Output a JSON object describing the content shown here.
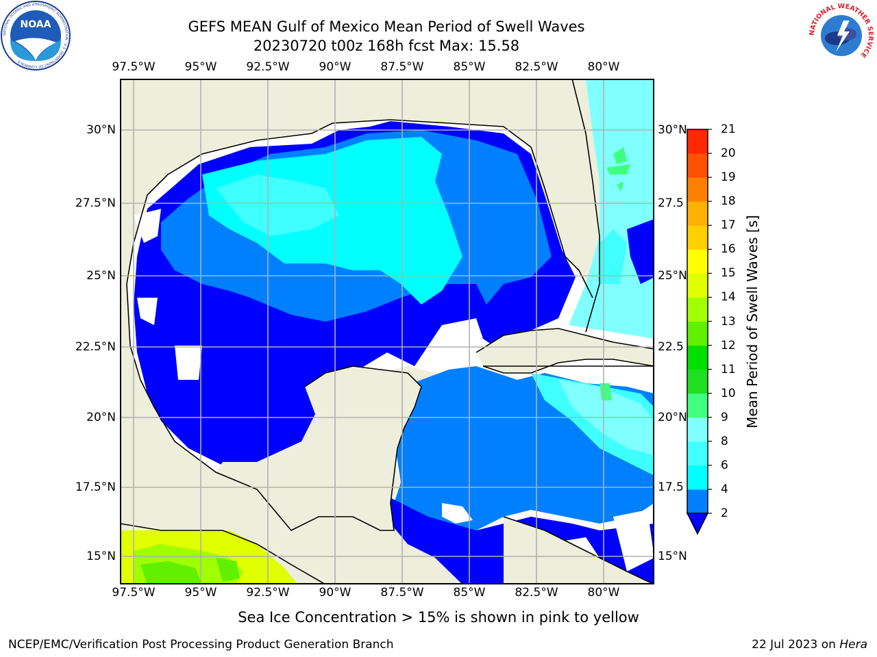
{
  "header": {
    "title": "GEFS MEAN Gulf of Mexico Mean Period of Swell Waves",
    "subtitle": "20230720 t00z 168h fcst   Max: 15.58"
  },
  "logos": {
    "noaa": {
      "text": "NOAA",
      "ring_text": "NATIONAL OCEANIC AND ATMOSPHERIC ADMINISTRATION · U.S. DEPARTMENT OF COMMERCE"
    },
    "nws": {
      "ring_text": "NATIONAL WEATHER SERVICE"
    }
  },
  "map": {
    "lon_labels": [
      "97.5°W",
      "95°W",
      "92.5°W",
      "90°W",
      "87.5°W",
      "85°W",
      "82.5°W",
      "80°W"
    ],
    "lat_labels": [
      "30°N",
      "27.5°N",
      "25°N",
      "22.5°N",
      "20°N",
      "17.5°N",
      "15°N"
    ],
    "lat_labels_right": [
      "30°N",
      "27.5",
      "25°N",
      "22.5",
      "20°N",
      "17.5",
      "15°N"
    ],
    "land_color": "#eeeedc",
    "grid_color": "#b0b0b0"
  },
  "colorbar": {
    "label": "Mean Period of Swell Waves [s]",
    "ticks": [
      "2",
      "4",
      "6",
      "8",
      "9",
      "10",
      "11",
      "12",
      "13",
      "14",
      "15",
      "16",
      "17",
      "18",
      "19",
      "20",
      "21"
    ],
    "colors": [
      "#0000ff",
      "#0080ff",
      "#00ffff",
      "#40ffff",
      "#80ffff",
      "#40ff80",
      "#20e020",
      "#00e000",
      "#60f000",
      "#a0ff00",
      "#e0ff00",
      "#ffff00",
      "#ffd000",
      "#ffb000",
      "#ff8000",
      "#ff5000",
      "#ff2800",
      "#ff0000"
    ]
  },
  "footer": {
    "sea_ice_note": "Sea Ice Concentration > 15% is shown in pink to yellow",
    "credit": "NCEP/EMC/Verification Post Processing Product Generation Branch",
    "date": "22 Jul 2023 on",
    "machine": "Hera"
  }
}
